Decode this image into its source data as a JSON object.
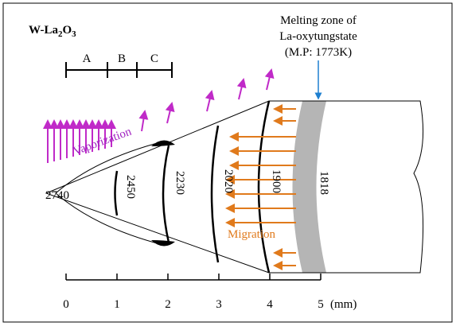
{
  "title": {
    "main": "W-La",
    "sub1": "2",
    "mid": "O",
    "sub2": "3"
  },
  "melting_label": [
    "Melting zone of",
    "La-oxytungstate",
    "(M.P: 1773K)"
  ],
  "zones": [
    "A",
    "B",
    "C"
  ],
  "annotations": {
    "vaporization": "Vaporization",
    "migration": "Migration"
  },
  "temperatures": [
    2740,
    2450,
    2230,
    2020,
    1900,
    1818
  ],
  "scale": {
    "ticks": [
      0,
      1,
      2,
      3,
      4,
      5
    ],
    "unit": "(mm)"
  }
}
